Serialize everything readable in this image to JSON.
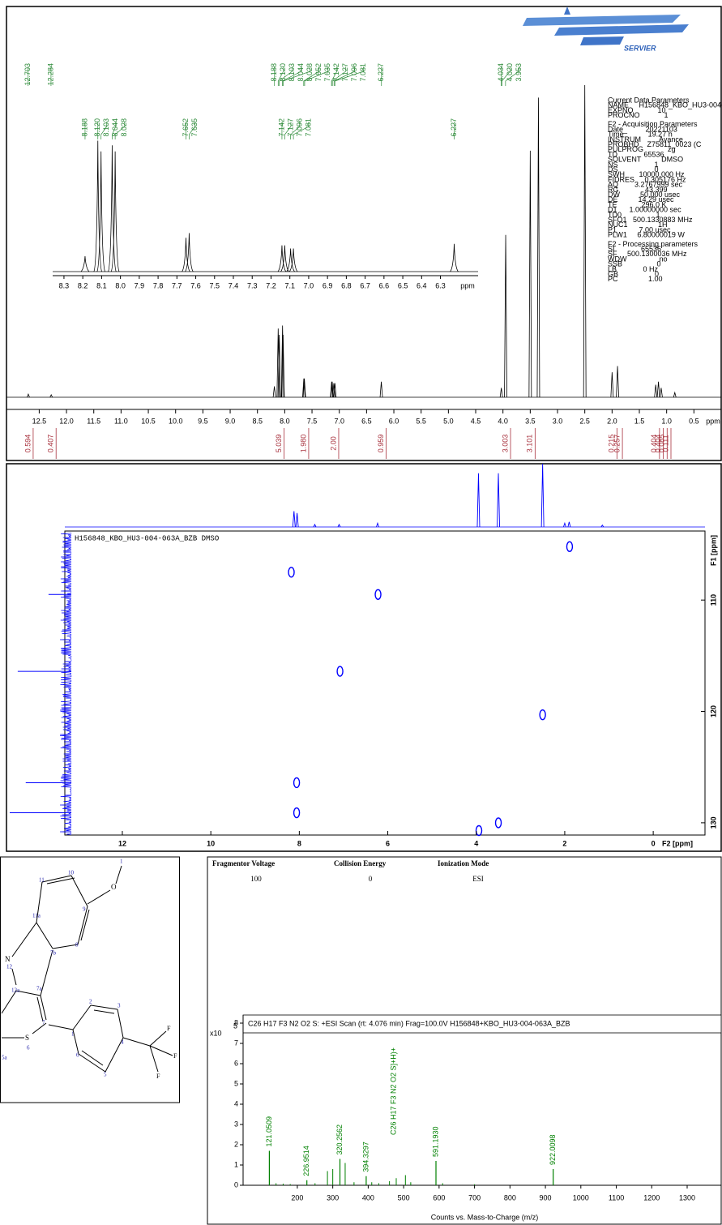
{
  "chart_data": [
    {
      "type": "nmr",
      "color": "#000000",
      "label_color": "#2e8b3a",
      "integral_color": "#a8323e",
      "xlim": [
        13.1,
        0.0
      ],
      "ylim": [
        0,
        100
      ],
      "x_label": "ppm",
      "xticks": [
        12.5,
        {
          "value": 12,
          "label": "12.0"
        },
        11.5,
        {
          "value": 11,
          "label": "11.0"
        },
        10.5,
        {
          "value": 10,
          "label": "10.0"
        },
        9.5,
        {
          "value": 9,
          "label": "9.0"
        },
        8.5,
        {
          "value": 8,
          "label": "8.0"
        },
        7.5,
        {
          "value": 7,
          "label": "7.0"
        },
        6.5,
        {
          "value": 6,
          "label": "6.0"
        },
        5.5,
        {
          "value": 5,
          "label": "5.0"
        },
        4.5,
        {
          "value": 4,
          "label": "4.0"
        },
        3.5,
        {
          "value": 3,
          "label": "3.0"
        },
        2.5,
        {
          "value": 2,
          "label": "2.0"
        },
        1.5,
        {
          "value": 1,
          "label": "1.0"
        },
        0.5
      ],
      "peaks": {
        "x": [
          12.7,
          12.28,
          8.19,
          8.12,
          8.1,
          8.04,
          8.03,
          7.65,
          7.64,
          7.14,
          7.13,
          7.1,
          7.08,
          6.23,
          4.03,
          3.95,
          3.5,
          3.35,
          2.5,
          2.0,
          1.9,
          1.2,
          1.15,
          1.1,
          0.85
        ],
        "values": [
          1,
          0.8,
          3.5,
          22,
          20,
          23,
          20,
          6,
          6,
          5,
          5,
          4.5,
          4.5,
          5,
          3,
          52,
          79,
          96,
          100,
          8,
          10,
          4,
          5,
          3,
          1.5
        ]
      },
      "peak_labels": [
        "12.703",
        "12.284",
        "8.188",
        "8.120",
        "8.103",
        "8.044",
        "8.028",
        "7.652",
        "7.635",
        "7.142",
        "7.127",
        "7.096",
        "7.081",
        "6.227",
        "4.034",
        "4.020",
        "3.953"
      ],
      "integrals": {
        "x": [
          12.7,
          12.28,
          8.1,
          7.65,
          7.1,
          6.23,
          3.95,
          3.5,
          2.0,
          1.9,
          1.22,
          1.15,
          1.08,
          1.01
        ],
        "values": [
          0.594,
          0.407,
          5.039,
          1.98,
          2,
          0.959,
          3.003,
          3.101,
          0.215,
          0.257,
          0.404,
          0.404,
          0.085,
          0.111
        ],
        "value_labels": [
          "0.594",
          "0.407",
          "5.039",
          "1.980",
          "2.00",
          "0.959",
          "3.003",
          "3.101",
          "0.215",
          "0.257",
          "0.404",
          "0.404",
          "0.085",
          "0.111"
        ]
      },
      "inset": {
        "xlim": [
          8.36,
          6.1
        ],
        "ylim": [
          0,
          100
        ],
        "x_label": "ppm",
        "xticks": [
          8.3,
          8.2,
          8.1,
          {
            "value": 8,
            "label": "8.0"
          },
          7.9,
          7.8,
          7.7,
          7.6,
          7.5,
          7.4,
          7.3,
          7.2,
          7.1,
          {
            "value": 7,
            "label": "7.0"
          },
          6.9,
          6.8,
          6.7,
          6.6,
          6.5,
          6.4,
          6.3
        ],
        "peaks": {
          "x": [
            8.188,
            8.12,
            8.103,
            8.044,
            8.028,
            7.652,
            7.635,
            7.142,
            7.127,
            7.096,
            7.081,
            6.227
          ],
          "values": [
            10,
            85,
            78,
            82,
            78,
            22,
            25,
            17,
            17,
            15,
            15,
            18
          ]
        },
        "peak_labels": [
          "8.188",
          "8.120",
          "8.103",
          "8.044",
          "8.028",
          "7.652",
          "7.635",
          "7.142",
          "7.127",
          "7.096",
          "7.081",
          "6.227"
        ]
      },
      "parameters": [
        [
          "Current Data Parameters",
          "NAME     H156848_KBO_HU3-004-063A_BZB",
          "EXPNO            10",
          "PROCNO            1"
        ],
        [
          "F2 - Acquisition Parameters",
          "Date_         20221103",
          "Time            19.27 h",
          "INSTRUM         Avance",
          "PROBHD    Z75811_0023 (C",
          "PULPROG            zg",
          "TD             65536",
          "SOLVENT          DMSO",
          "NS                  1",
          "DS                  0",
          "SWH       10000.000 Hz",
          "FIDRES     0.305176 Hz",
          "AQ        3.2767999 sec",
          "RG             43.399",
          "DW          50.000 usec",
          "DE          14.29 usec",
          "TE            296.0 K",
          "D1      1.00000000 sec",
          "TD0                 1",
          "SFO1   500.1330883 MHz",
          "NUC1               1H",
          "P1           7.00 usec",
          "PLW1     6.80000019 W"
        ],
        [
          "F2 - Processing parameters",
          "SI             65536",
          "SF     500.1300036 MHz",
          "WDW                no",
          "SSB                 0",
          "LB             0 Hz",
          "GB                  0",
          "PC               1.00"
        ]
      ]
    },
    {
      "type": "hsqc",
      "color": "#0000ff",
      "caption": "H156848_KBO_HU3-004-063A_BZB DMSO",
      "xlim": [
        13.3,
        -1.17
      ],
      "ylim": [
        103.8,
        131.1
      ],
      "xticks": [
        12,
        10,
        8,
        6,
        4,
        2,
        0
      ],
      "yticks": [
        110,
        120,
        130
      ],
      "x_label": "F2 [ppm]",
      "y_label": "F1 [ppm]",
      "cross_peaks": {
        "x": [
          8.18,
          6.22,
          7.08,
          2.5,
          8.06,
          8.06,
          3.94,
          3.5,
          1.89
        ],
        "y": [
          107.5,
          109.5,
          116.4,
          120.3,
          126.4,
          129.1,
          130.7,
          130.0,
          105.2
        ]
      },
      "f2_projection": {
        "x": [
          8.12,
          8.05,
          7.65,
          7.1,
          6.23,
          3.95,
          3.5,
          2.5,
          2.0,
          1.9,
          1.15
        ],
        "values": [
          25,
          22,
          4,
          4,
          6,
          85,
          85,
          100,
          6,
          8,
          3
        ]
      },
      "f1_projection": {
        "y": [
          109.5,
          116.4,
          126.4,
          129.1
        ],
        "values": [
          37,
          87,
          74,
          100
        ]
      }
    },
    {
      "type": "mass_spectrum",
      "color": "#008000",
      "header": {
        "columns": [
          "Fragmentor Voltage",
          "Collision Energy",
          "Ionization Mode"
        ],
        "values": [
          100,
          0,
          "ESI"
        ]
      },
      "title": "C26 H17 F3 N2 O2 S: +ESI Scan (rt: 4.076 min) Frag=100.0V H156848+KBO_HU3-004-063A_BZB",
      "y_scale_label": "x10",
      "y_exponent": 5,
      "xlim": [
        47,
        1396
      ],
      "ylim": [
        0,
        8.4
      ],
      "xticks": [
        200,
        300,
        400,
        500,
        600,
        700,
        800,
        900,
        1000,
        1100,
        1200,
        1300
      ],
      "yticks": [
        0,
        1,
        2,
        3,
        4,
        5,
        6,
        7,
        8
      ],
      "x_label": "Counts vs. Mass-to-Charge (m/z)",
      "peaks": {
        "x": [
          121.0509,
          226.9514,
          320.2562,
          394.3297,
          591.193,
          922.0098
        ],
        "values": [
          1.7,
          0.25,
          1.3,
          0.45,
          1.2,
          0.8
        ],
        "x_labels": [
          "121.0509",
          "226.9514",
          "320.2562",
          "394.3297",
          "591.1930",
          "922.0098"
        ]
      },
      "minor_peaks": {
        "x": [
          140,
          160,
          180,
          250,
          285,
          300,
          335,
          360,
          410,
          430,
          460,
          479.104,
          505,
          520,
          610,
          700
        ],
        "values": [
          0.1,
          0.08,
          0.06,
          0.1,
          0.7,
          0.8,
          1.1,
          0.15,
          0.15,
          0.1,
          0.2,
          0.35,
          0.5,
          0.15,
          0.1,
          0.05
        ]
      },
      "annotation": {
        "text": "C26 H17 F3 N2 O2 S]+H)+",
        "x": 505
      }
    }
  ],
  "logo": "SERVIER",
  "structure": {
    "atoms": [
      "1",
      "O",
      "10",
      "11",
      "9",
      "11a",
      "8",
      "7b",
      "N",
      "12",
      "12a",
      "7a",
      "7",
      "1",
      "2",
      "3",
      "4",
      "5",
      "6",
      "S",
      "6",
      "5a",
      "F",
      "F",
      "F"
    ]
  }
}
